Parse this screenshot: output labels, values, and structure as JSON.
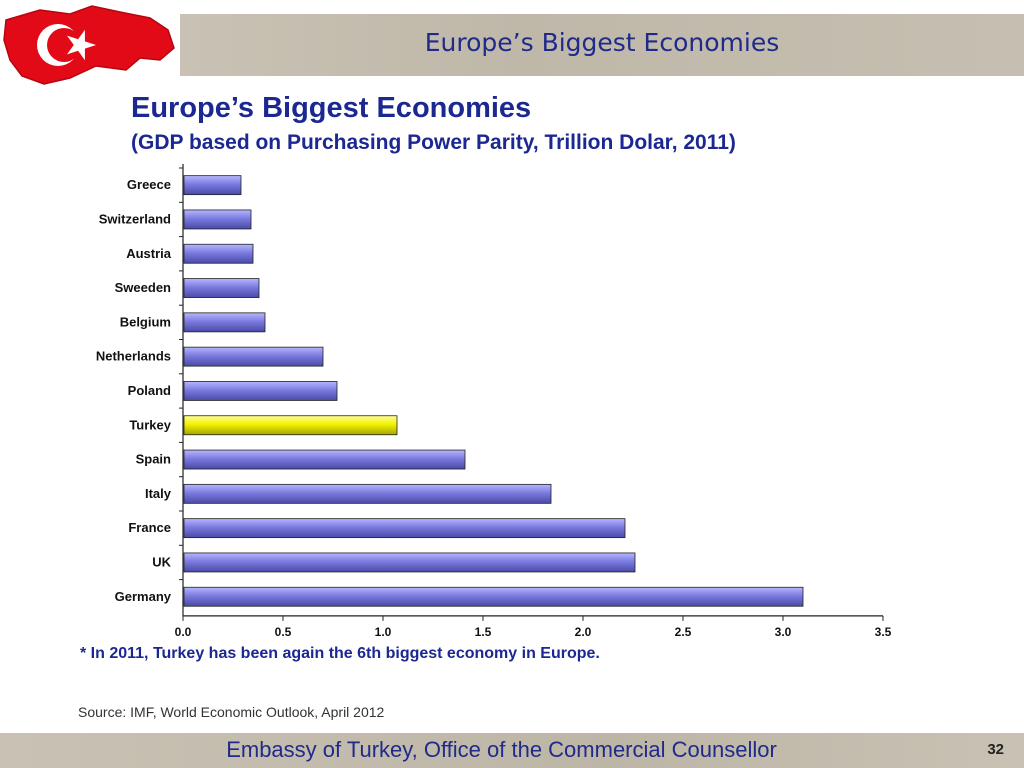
{
  "header": {
    "title": "Europe’s Biggest Economies"
  },
  "main": {
    "title": "Europe’s Biggest Economies",
    "subtitle": "(GDP based on Purchasing Power Parity, Trillion Dolar, 2011)",
    "note": "* In 2011, Turkey has been again the 6th biggest economy in Europe.",
    "source": "Source: IMF, World Economic Outlook, April 2012"
  },
  "footer": {
    "text": "Embassy of Turkey, Office of the Commercial Counsellor",
    "page_number": "32"
  },
  "colors": {
    "bar": "#7b7be0",
    "bar_light": "#b6b6ff",
    "bar_dark": "#4a4aa8",
    "highlight": "#f2f200",
    "highlight_light": "#ffff99",
    "highlight_dark": "#a5a500",
    "title_blue": "#1c2891",
    "flag_red": "#e30a17"
  },
  "icons": {
    "logo": "turkey-flag-icon"
  },
  "chart_data": {
    "type": "bar",
    "orientation": "horizontal",
    "categories": [
      "Greece",
      "Switzerland",
      "Austria",
      "Sweeden",
      "Belgium",
      "Netherlands",
      "Poland",
      "Turkey",
      "Spain",
      "Italy",
      "France",
      "UK",
      "Germany"
    ],
    "values": [
      0.29,
      0.34,
      0.35,
      0.38,
      0.41,
      0.7,
      0.77,
      1.07,
      1.41,
      1.84,
      2.21,
      2.26,
      3.1
    ],
    "highlight": "Turkey",
    "xlim": [
      0,
      3.5
    ],
    "xticks": [
      "0.0",
      "0.5",
      "1.0",
      "1.5",
      "2.0",
      "2.5",
      "3.0",
      "3.5"
    ],
    "grid": false,
    "legend": "none"
  }
}
